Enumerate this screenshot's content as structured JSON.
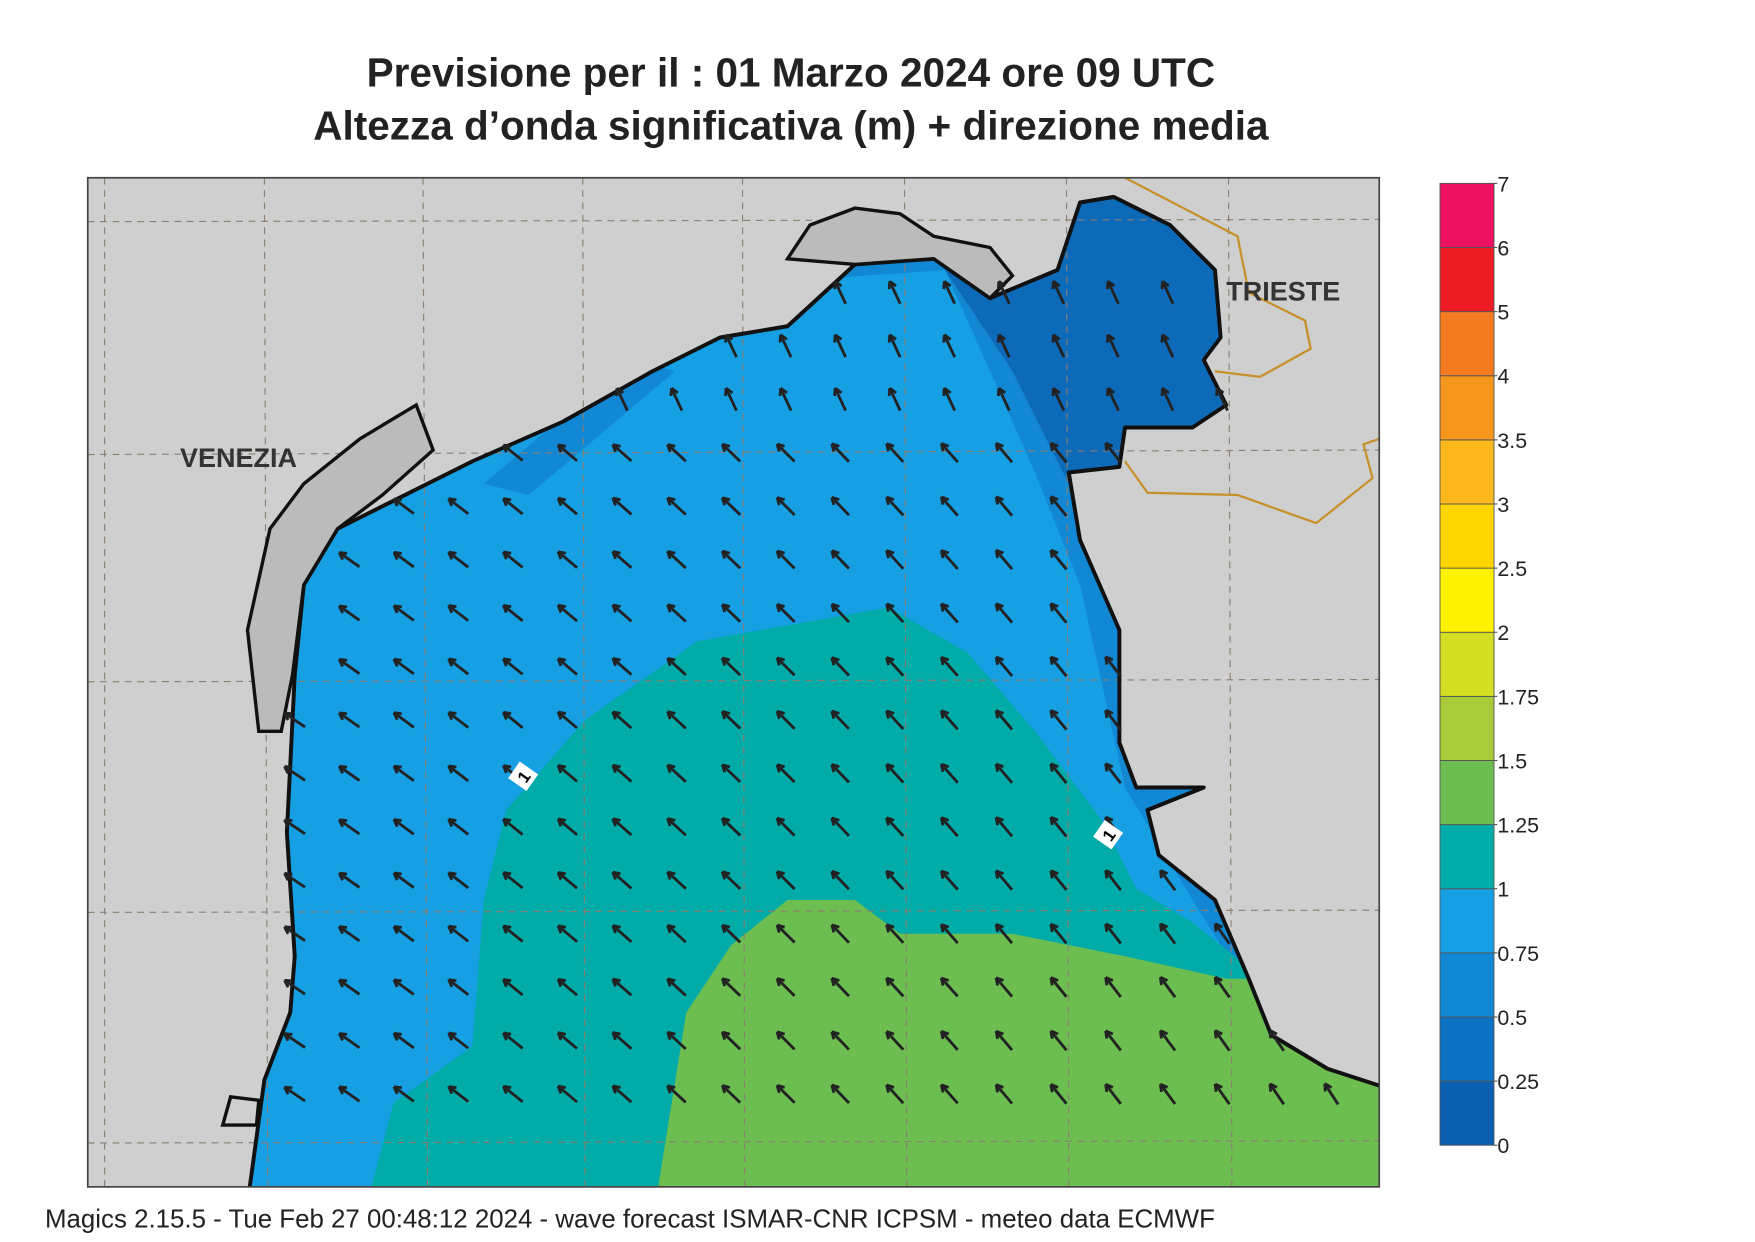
{
  "title": [
    "Previsione per il  :  01   Marzo   2024   ore 09 UTC",
    "Altezza d’onda significativa (m) + direzione media"
  ],
  "map": {
    "places": [
      "VENEZIA",
      "TRIESTE"
    ],
    "contour_labels": [
      "1",
      "1"
    ]
  },
  "legend": {
    "levels": [
      0,
      0.25,
      0.5,
      0.75,
      1,
      1.25,
      1.5,
      1.75,
      2,
      2.5,
      3,
      3.5,
      4,
      5,
      6,
      7
    ],
    "colors": [
      "#0a5fb0",
      "#0d72c2",
      "#1287d4",
      "#169fe3",
      "#00aba8",
      "#6cbe50",
      "#a8cb3a",
      "#d4de22",
      "#fff200",
      "#ffd500",
      "#fcb71a",
      "#f7961d",
      "#f47b20",
      "#ed1c24",
      "#ec1163"
    ]
  },
  "footer": "Magics 2.15.5 - Tue Feb 27 00:48:12 2024 - wave forecast  ISMAR-CNR  ICPSM - meteo data    ECMWF"
}
